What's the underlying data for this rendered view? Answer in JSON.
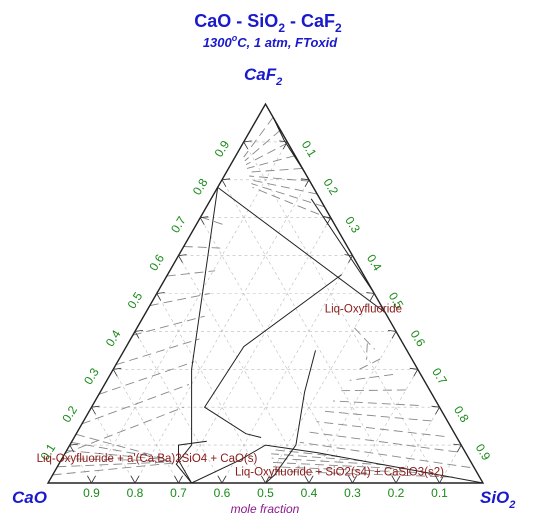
{
  "chart_data": {
    "type": "ternary",
    "title": {
      "prefix": "CaO - SiO",
      "sub1": "2",
      "mid": " - CaF",
      "sub2": "2"
    },
    "subtitle": {
      "prefix": "1300",
      "sup": "o",
      "suffix": "C, 1 atm, FToxid"
    },
    "vertices": {
      "top": {
        "base": "CaF",
        "sub": "2"
      },
      "left": {
        "base": "CaO",
        "sub": ""
      },
      "right": {
        "base": "SiO",
        "sub": "2"
      }
    },
    "axis_label": "mole fraction",
    "ticks": [
      "0.1",
      "0.2",
      "0.3",
      "0.4",
      "0.5",
      "0.6",
      "0.7",
      "0.8",
      "0.9"
    ],
    "regions": [
      {
        "label": "Liq-Oxyfluoride",
        "sio2": 0.5,
        "caf2": 0.45
      },
      {
        "label": "Liq-Oxyfluoride + a'(Ca,Ba)2SiO4 + CaO(s)",
        "sio2": 0.2,
        "caf2": 0.055
      },
      {
        "label": "Liq-Oxyfluoride + SiO2(s4) + CaSiO3(s2)",
        "sio2": 0.66,
        "caf2": 0.02
      }
    ],
    "boundaries": [
      [
        [
          0,
          0.78
        ],
        [
          0.55,
          0.45
        ]
      ],
      [
        [
          0,
          0.78
        ],
        [
          0.18,
          0.3
        ],
        [
          0.28,
          0.1
        ],
        [
          0.27,
          0.05
        ],
        [
          0.33,
          0.0
        ]
      ],
      [
        [
          0.33,
          0.0
        ],
        [
          0.41,
          0.06
        ],
        [
          0.45,
          0.1
        ],
        [
          0.58,
          0.08
        ],
        [
          1,
          0
        ]
      ],
      [
        [
          0.23,
          0.75
        ],
        [
          0.5,
          0.5
        ]
      ],
      [
        [
          0.18,
          0.82
        ],
        [
          0.09,
          0.905
        ],
        [
          0.035,
          0.965
        ]
      ],
      [
        [
          0.035,
          0.965
        ],
        [
          0.31,
          0.69
        ]
      ],
      [
        [
          0.44,
          0.35
        ],
        [
          0.47,
          0.24
        ],
        [
          0.52,
          0.1
        ],
        [
          0.51,
          0.02
        ],
        [
          0.5,
          0
        ]
      ],
      [
        [
          0.4,
          0.55
        ],
        [
          0.27,
          0.36
        ],
        [
          0.26,
          0.2
        ],
        [
          0.39,
          0.13
        ],
        [
          0.43,
          0.12
        ]
      ],
      [
        [
          0.33,
          0.0
        ],
        [
          0.27,
          0.06
        ],
        [
          0.25,
          0.1
        ],
        [
          0.31,
          0.11
        ]
      ]
    ]
  }
}
